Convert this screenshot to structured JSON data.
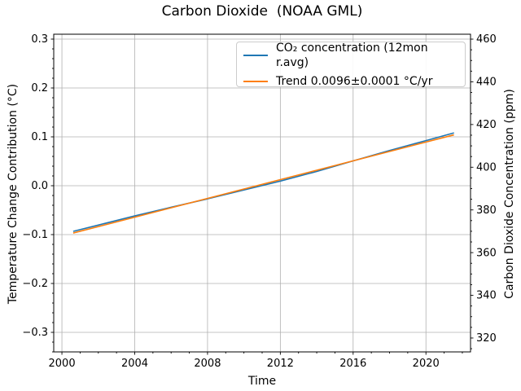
{
  "figure": {
    "background": "#ffffff"
  },
  "chart_data": {
    "type": "line",
    "title": "Carbon Dioxide  (NOAA GML)",
    "xlabel": "Time",
    "ylabel_left": "Temperature Change Contribution (°C)",
    "ylabel_right": "Carbon Dioxide Concentration (ppm)",
    "xlim": [
      1999.55,
      2022.45
    ],
    "ylim_left": [
      -0.34,
      0.31
    ],
    "ylim_right": [
      313.5,
      462.3
    ],
    "grid": true,
    "grid_color": "#b0b0b0",
    "spine_color": "#000000",
    "xticks": [
      2000,
      2004,
      2008,
      2012,
      2016,
      2020
    ],
    "x_tick_labels": [
      "2000",
      "2004",
      "2008",
      "2012",
      "2016",
      "2020"
    ],
    "x_minor_step": 1,
    "yticks_left": [
      0.3,
      0.2,
      0.1,
      0.0,
      -0.1,
      -0.2,
      -0.3
    ],
    "y_tick_labels_left": [
      "0.3",
      "0.2",
      "0.1",
      "0.0",
      "−0.1",
      "−0.2",
      "−0.3"
    ],
    "y_minor_step_left": 0.02,
    "yticks_right": [
      460,
      440,
      420,
      400,
      380,
      360,
      340,
      320
    ],
    "y_tick_labels_right": [
      "460",
      "440",
      "420",
      "400",
      "380",
      "360",
      "340",
      "320"
    ],
    "y_minor_step_right": 5,
    "legend": {
      "position": "upper right"
    },
    "series": [
      {
        "name": "co2-concentration",
        "label": "CO₂ concentration (12mon r.avg)",
        "color": "#1f77b4",
        "axis": "left",
        "x": [
          2000.62,
          2002,
          2004,
          2006,
          2008,
          2010,
          2012,
          2014,
          2016,
          2018,
          2020,
          2021.54
        ],
        "y_degC": [
          -0.0933,
          -0.0805,
          -0.0618,
          -0.0441,
          -0.0269,
          -0.0087,
          0.0095,
          0.0292,
          0.0509,
          0.0721,
          0.0923,
          0.1081
        ],
        "y_ppm": [
          370.0,
          372.9,
          377.2,
          381.2,
          385.2,
          389.3,
          393.5,
          398.0,
          403.0,
          407.8,
          412.5,
          416.1
        ]
      },
      {
        "name": "trend",
        "label": "Trend 0.0096±0.0001 °C/yr",
        "color": "#ff7f0e",
        "axis": "left",
        "x": [
          2000.62,
          2021.54
        ],
        "y_degC": [
          -0.0968,
          0.1041
        ],
        "slope_degC_per_yr": 0.0096,
        "slope_uncertainty_degC_per_yr": 0.0001
      }
    ]
  }
}
